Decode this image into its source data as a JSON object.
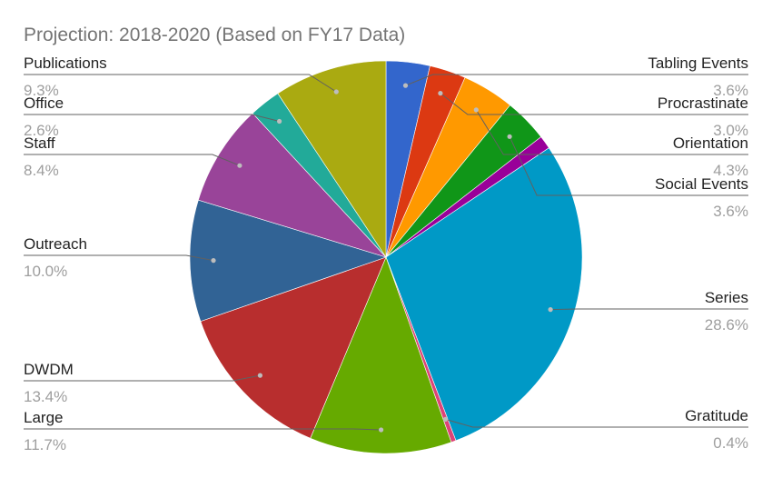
{
  "chart_data": {
    "type": "pie",
    "title": "Projection: 2018-2020 (Based on FY17 Data)",
    "legend": "none",
    "slices": [
      {
        "label": "Tabling Events",
        "value": 3.6,
        "display": "3.6%",
        "color": "#3366cc"
      },
      {
        "label": "Procrastinate",
        "value": 3.0,
        "display": "3.0%",
        "color": "#dc3912"
      },
      {
        "label": "Orientation",
        "value": 4.3,
        "display": "4.3%",
        "color": "#ff9900"
      },
      {
        "label": "Social Events",
        "value": 3.6,
        "display": "3.6%",
        "color": "#109618"
      },
      {
        "label": "",
        "value": 1.1,
        "display": "",
        "color": "#990099"
      },
      {
        "label": "Series",
        "value": 28.6,
        "display": "28.6%",
        "color": "#0099c6"
      },
      {
        "label": "Gratitude",
        "value": 0.4,
        "display": "0.4%",
        "color": "#dd4477"
      },
      {
        "label": "Large",
        "value": 11.7,
        "display": "11.7%",
        "color": "#66aa00"
      },
      {
        "label": "DWDM",
        "value": 13.4,
        "display": "13.4%",
        "color": "#b82e2e"
      },
      {
        "label": "Outreach",
        "value": 10.0,
        "display": "10.0%",
        "color": "#316395"
      },
      {
        "label": "Staff",
        "value": 8.4,
        "display": "8.4%",
        "color": "#994499"
      },
      {
        "label": "Office",
        "value": 2.6,
        "display": "2.6%",
        "color": "#22aa99"
      },
      {
        "label": "Publications",
        "value": 9.3,
        "display": "9.3%",
        "color": "#aaaa11"
      }
    ]
  }
}
